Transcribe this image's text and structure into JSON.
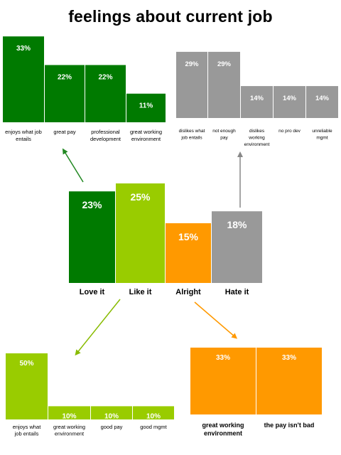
{
  "title": "feelings about current job",
  "colors": {
    "love": "#007A00",
    "like": "#99CC00",
    "alright": "#FF9900",
    "hate": "#999999",
    "arrow_love": "#228822",
    "arrow_like": "#88BB00",
    "arrow_alright": "#FF9900",
    "arrow_hate": "#888888"
  },
  "chart_data": [
    {
      "id": "main",
      "type": "bar",
      "title": "feelings about current job",
      "categories": [
        "Love it",
        "Like it",
        "Alright",
        "Hate it"
      ],
      "values": [
        23,
        25,
        15,
        18
      ],
      "labels": [
        "23%",
        "25%",
        "15%",
        "18%"
      ],
      "colors": [
        "#007A00",
        "#99CC00",
        "#FF9900",
        "#999999"
      ]
    },
    {
      "id": "love_reasons",
      "type": "bar",
      "categories": [
        [
          "enjoys what job",
          "entails"
        ],
        [
          "great pay"
        ],
        [
          "professional",
          "development"
        ],
        [
          "great working",
          "environment"
        ]
      ],
      "values": [
        33,
        22,
        22,
        11
      ],
      "labels": [
        "33%",
        "22%",
        "22%",
        "11%"
      ],
      "color": "#007A00"
    },
    {
      "id": "hate_reasons",
      "type": "bar",
      "categories": [
        [
          "dislikes what",
          "job entails"
        ],
        [
          "not enough",
          "pay"
        ],
        [
          "dislikes",
          "working",
          "environment"
        ],
        [
          "no pro dev"
        ],
        [
          "unreliable",
          "mgmt"
        ]
      ],
      "values": [
        29,
        29,
        14,
        14,
        14
      ],
      "labels": [
        "29%",
        "29%",
        "14%",
        "14%",
        "14%"
      ],
      "color": "#999999"
    },
    {
      "id": "like_reasons",
      "type": "bar",
      "categories": [
        [
          "enjoys what",
          "job entails"
        ],
        [
          "great working",
          "environment"
        ],
        [
          "good pay"
        ],
        [
          "good mgmt"
        ]
      ],
      "values": [
        50,
        10,
        10,
        10
      ],
      "labels": [
        "50%",
        "10%",
        "10%",
        "10%"
      ],
      "color": "#99CC00"
    },
    {
      "id": "alright_reasons",
      "type": "bar",
      "categories": [
        [
          "great working",
          "environment"
        ],
        [
          "the pay isn't bad"
        ]
      ],
      "values": [
        33,
        33
      ],
      "labels": [
        "33%",
        "33%"
      ],
      "color": "#FF9900"
    }
  ]
}
